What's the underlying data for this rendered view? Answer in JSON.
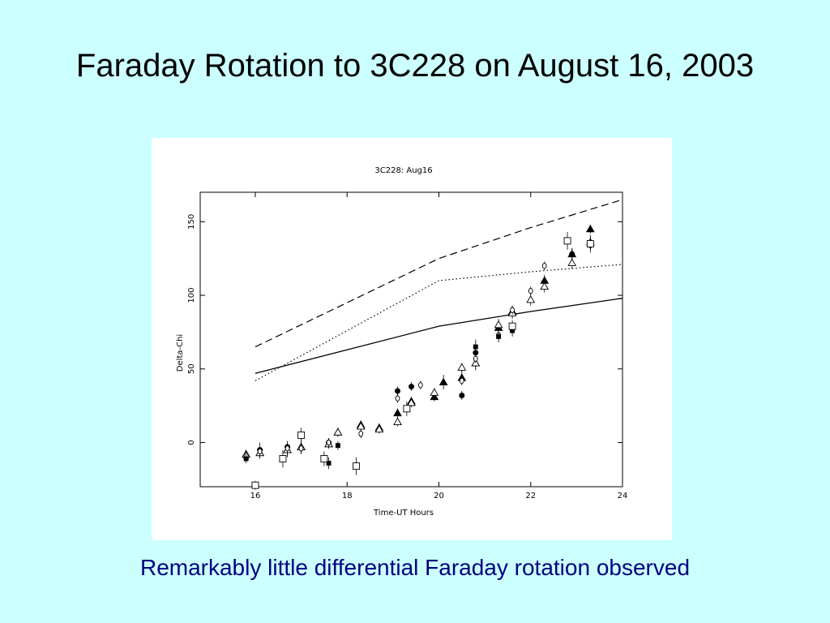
{
  "slide": {
    "title": "Faraday Rotation to 3C228 on August 16, 2003",
    "caption": "Remarkably little differential Faraday rotation observed",
    "background_color": "#ccffff",
    "caption_color": "#000080"
  },
  "chart_data": {
    "type": "scatter",
    "title": "3C228: Aug16",
    "xlabel": "Time-UT Hours",
    "ylabel": "Delta-Chi",
    "xlim": [
      14.8,
      24
    ],
    "ylim": [
      -30,
      170
    ],
    "xticks": [
      16,
      18,
      20,
      22,
      24
    ],
    "yticks": [
      0,
      50,
      100,
      150
    ],
    "grid": false,
    "lines": [
      {
        "style": "dashed",
        "x": [
          16,
          20,
          22,
          24
        ],
        "y": [
          65,
          125,
          146,
          165
        ]
      },
      {
        "style": "dotted",
        "x": [
          16,
          20,
          22,
          24
        ],
        "y": [
          42,
          110,
          116,
          121
        ]
      },
      {
        "style": "solid",
        "x": [
          16,
          20,
          22,
          24
        ],
        "y": [
          47,
          79,
          89,
          98
        ]
      }
    ],
    "series": [
      {
        "marker": "filled-circle",
        "x": [
          15.8,
          16.1,
          16.7,
          17.6,
          19.1,
          19.4,
          20.5,
          20.8,
          21.6,
          22.9
        ],
        "y": [
          -10,
          -5,
          -3,
          0,
          35,
          38,
          32,
          61,
          77,
          128
        ],
        "err": [
          3,
          5,
          4,
          3,
          3,
          3,
          3,
          3,
          3,
          4
        ]
      },
      {
        "marker": "filled-triangle",
        "x": [
          15.8,
          16.1,
          16.7,
          17.0,
          17.6,
          17.8,
          18.3,
          18.7,
          19.1,
          19.4,
          19.9,
          20.1,
          20.5,
          20.8,
          21.3,
          21.6,
          22.3,
          22.9,
          23.3
        ],
        "y": [
          -8,
          -7,
          -5,
          -3,
          -1,
          7,
          12,
          10,
          20,
          28,
          31,
          41,
          44,
          54,
          78,
          89,
          110,
          128,
          145
        ],
        "err": [
          3,
          4,
          5,
          5,
          3,
          3,
          3,
          3,
          3,
          3,
          3,
          5,
          5,
          5,
          4,
          4,
          4,
          4,
          3
        ]
      },
      {
        "marker": "open-triangle",
        "x": [
          15.8,
          16.1,
          16.7,
          17.0,
          17.6,
          17.8,
          18.3,
          18.7,
          19.1,
          19.4,
          19.9,
          20.5,
          20.8,
          21.3,
          21.6,
          22.0,
          22.3,
          22.9,
          23.3
        ],
        "y": [
          -8,
          -7,
          -5,
          -3,
          -1,
          7,
          11,
          9,
          14,
          27,
          34,
          51,
          54,
          80,
          88,
          97,
          106,
          122,
          136
        ],
        "err": [
          3,
          3,
          4,
          4,
          3,
          3,
          3,
          3,
          3,
          3,
          3,
          3,
          4,
          4,
          4,
          4,
          4,
          4,
          4
        ]
      },
      {
        "marker": "open-circle",
        "x": [
          15.8,
          16.1,
          16.7,
          17.0,
          17.6,
          18.3,
          19.1,
          19.6,
          20.5,
          20.8,
          21.3,
          21.6,
          22.0,
          22.3,
          23.3
        ],
        "y": [
          -9,
          -6,
          -4,
          -4,
          0,
          6,
          30,
          39,
          42,
          57,
          73,
          90,
          103,
          120,
          134
        ],
        "err": [
          3,
          3,
          3,
          3,
          3,
          3,
          3,
          3,
          3,
          3,
          3,
          3,
          3,
          3,
          3
        ]
      },
      {
        "marker": "filled-square",
        "x": [
          15.8,
          17.6,
          17.8,
          20.8,
          21.3,
          21.6
        ],
        "y": [
          -11,
          -14,
          -2,
          65,
          72,
          76
        ],
        "err": [
          3,
          4,
          3,
          5,
          4,
          4
        ]
      },
      {
        "marker": "open-square",
        "x": [
          16.0,
          16.6,
          17.0,
          17.5,
          18.2,
          19.3,
          21.6,
          22.8,
          23.3
        ],
        "y": [
          -29,
          -11,
          5,
          -11,
          -16,
          23,
          79,
          137,
          135
        ],
        "err": [
          3,
          6,
          5,
          5,
          6,
          5,
          4,
          6,
          6
        ]
      }
    ]
  }
}
